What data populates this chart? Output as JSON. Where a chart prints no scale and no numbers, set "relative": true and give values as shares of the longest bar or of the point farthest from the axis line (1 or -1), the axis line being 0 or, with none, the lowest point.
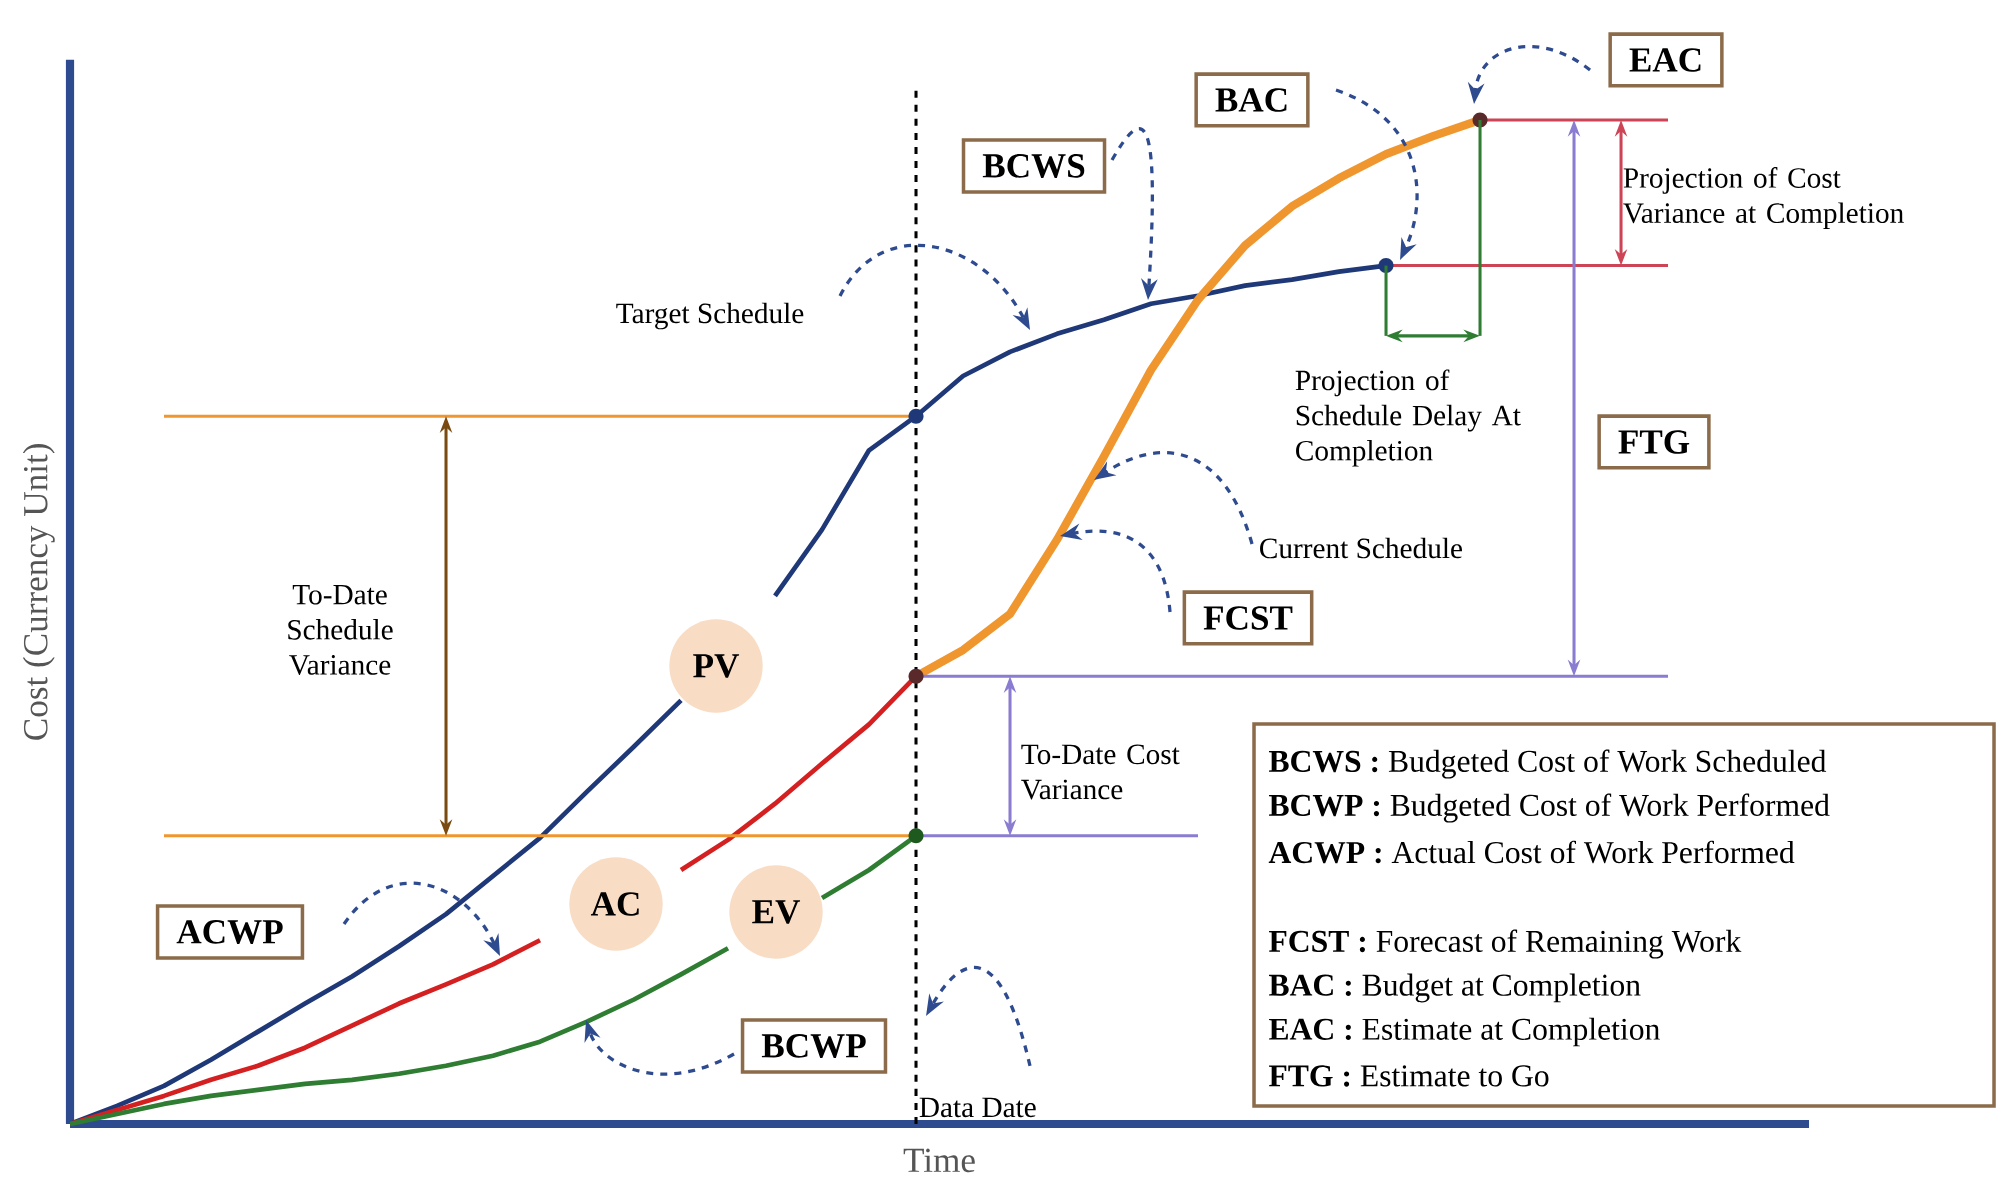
{
  "chart_data": {
    "type": "line",
    "relative": true,
    "xlabel": "Time",
    "ylabel": "Cost (Currency Unit)",
    "categories": [
      null,
      null,
      null,
      null,
      null,
      null,
      null,
      null,
      null,
      null,
      null,
      null,
      null,
      null,
      null,
      null,
      null,
      null,
      null,
      null,
      null,
      null,
      null,
      null,
      null,
      null,
      null,
      null,
      null,
      null,
      null,
      null,
      null,
      null,
      null,
      null,
      null,
      null
    ],
    "series": [
      {
        "name": "PV",
        "color": "#1f3877",
        "values": [
          0,
          0.018,
          0.038,
          0.064,
          0.092,
          0.12,
          0.147,
          0.177,
          0.209,
          0.247,
          0.285,
          0.331,
          0.376,
          0.422,
          null,
          0.526,
          0.592,
          0.671,
          0.705,
          0.745,
          0.769,
          0.787,
          0.801,
          0.817,
          0.825,
          0.835,
          0.841,
          0.849,
          0.855,
          null,
          null,
          null,
          null,
          null,
          null,
          null,
          null,
          null
        ]
      },
      {
        "name": "AC",
        "color": "#d42020",
        "values": [
          0,
          0.014,
          0.028,
          0.044,
          0.058,
          0.076,
          0.098,
          0.12,
          0.139,
          0.159,
          0.183,
          null,
          null,
          0.253,
          0.283,
          0.319,
          0.359,
          0.398,
          0.446,
          null,
          null,
          null,
          null,
          null,
          null,
          null,
          null,
          null,
          null,
          null,
          null,
          null,
          null,
          null,
          null,
          null,
          null,
          null
        ]
      },
      {
        "name": "EV",
        "color": "#2e7d32",
        "values": [
          0,
          0.01,
          0.02,
          0.028,
          0.034,
          0.04,
          0.044,
          0.05,
          0.058,
          0.068,
          0.082,
          0.102,
          0.124,
          0.149,
          0.175,
          null,
          0.225,
          0.253,
          0.287,
          null,
          null,
          null,
          null,
          null,
          null,
          null,
          null,
          null,
          null,
          null,
          null,
          null,
          null,
          null,
          null,
          null,
          null,
          null
        ]
      },
      {
        "color": "#f0962f",
        "values": [
          null,
          null,
          null,
          null,
          null,
          null,
          null,
          null,
          null,
          null,
          null,
          null,
          null,
          null,
          null,
          null,
          null,
          null,
          0.446,
          0.472,
          0.508,
          0.582,
          0.665,
          0.751,
          0.821,
          0.875,
          0.914,
          0.942,
          0.966,
          0.984,
          1.0,
          null,
          null,
          null,
          null,
          null,
          null,
          null
        ]
      },
      {
        "color": "#f0962f",
        "values": [
          null,
          null,
          0.705,
          0.705,
          0.705,
          0.705,
          0.705,
          0.705,
          0.705,
          0.705,
          0.705,
          0.705,
          0.705,
          0.705,
          0.705,
          0.705,
          0.705,
          0.705,
          0.705,
          null,
          null,
          null,
          null,
          null,
          null,
          null,
          null,
          null,
          null,
          null,
          null,
          null,
          null,
          null,
          null,
          null,
          null,
          null
        ]
      },
      {
        "color": "#f0962f",
        "values": [
          null,
          null,
          0.287,
          0.287,
          0.287,
          0.287,
          0.287,
          0.287,
          0.287,
          0.287,
          0.287,
          0.287,
          0.287,
          0.287,
          0.287,
          0.287,
          0.287,
          0.287,
          0.287,
          null,
          null,
          null,
          null,
          null,
          null,
          null,
          null,
          null,
          null,
          null,
          null,
          null,
          null,
          null,
          null,
          null,
          null,
          null
        ]
      },
      {
        "color": "#8a7cd0",
        "values": [
          null,
          null,
          null,
          null,
          null,
          null,
          null,
          null,
          null,
          null,
          null,
          null,
          null,
          null,
          null,
          null,
          null,
          null,
          0.446,
          0.446,
          0.446,
          0.446,
          0.446,
          0.446,
          0.446,
          0.446,
          0.446,
          0.446,
          0.446,
          0.446,
          0.446,
          0.446,
          0.446,
          0.446,
          0.446,
          null,
          null,
          null
        ]
      },
      {
        "color": "#8a7cd0",
        "values": [
          null,
          null,
          null,
          null,
          null,
          null,
          null,
          null,
          null,
          null,
          null,
          null,
          null,
          null,
          null,
          null,
          null,
          null,
          0.287,
          0.287,
          0.287,
          0.287,
          0.287,
          0.287,
          0.287,
          null,
          null,
          null,
          null,
          null,
          null,
          null,
          null,
          null,
          null,
          null,
          null,
          null
        ]
      },
      {
        "color": "#cc4455",
        "values": [
          null,
          null,
          null,
          null,
          null,
          null,
          null,
          null,
          null,
          null,
          null,
          null,
          null,
          null,
          null,
          null,
          null,
          null,
          null,
          null,
          null,
          null,
          null,
          null,
          null,
          null,
          null,
          null,
          null,
          null,
          1.0,
          1.0,
          1.0,
          1.0,
          1.0,
          null,
          null,
          null
        ]
      },
      {
        "color": "#cc4455",
        "values": [
          null,
          null,
          null,
          null,
          null,
          null,
          null,
          null,
          null,
          null,
          null,
          null,
          null,
          null,
          null,
          null,
          null,
          null,
          null,
          null,
          null,
          null,
          null,
          null,
          null,
          null,
          null,
          null,
          0.855,
          0.855,
          0.855,
          0.855,
          0.855,
          0.855,
          0.855,
          null,
          null,
          null
        ]
      }
    ],
    "annotations": [
      "Target Schedule",
      "BCWS",
      "BAC",
      "EAC",
      "Projection of Cost Variance at Completion",
      "Projection of Schedule Delay At Completion",
      "FTG",
      "Current Schedule",
      "FCST",
      "To-Date Schedule Variance",
      "To-Date Cost Variance",
      "ACWP",
      "BCWP",
      "**BCWS :** Budgeted Cost of Work Scheduled",
      "**BCWP :** Budgeted Cost of Work Performed",
      "**ACWP :** Actual Cost of Work Performed",
      "**FCST :** Forecast of Remaining Work",
      "**BAC :** Budget at Completion",
      "**EAC :** Estimate at Completion",
      "**FTG :** Estimate to Go",
      "Data Date"
    ]
  }
}
